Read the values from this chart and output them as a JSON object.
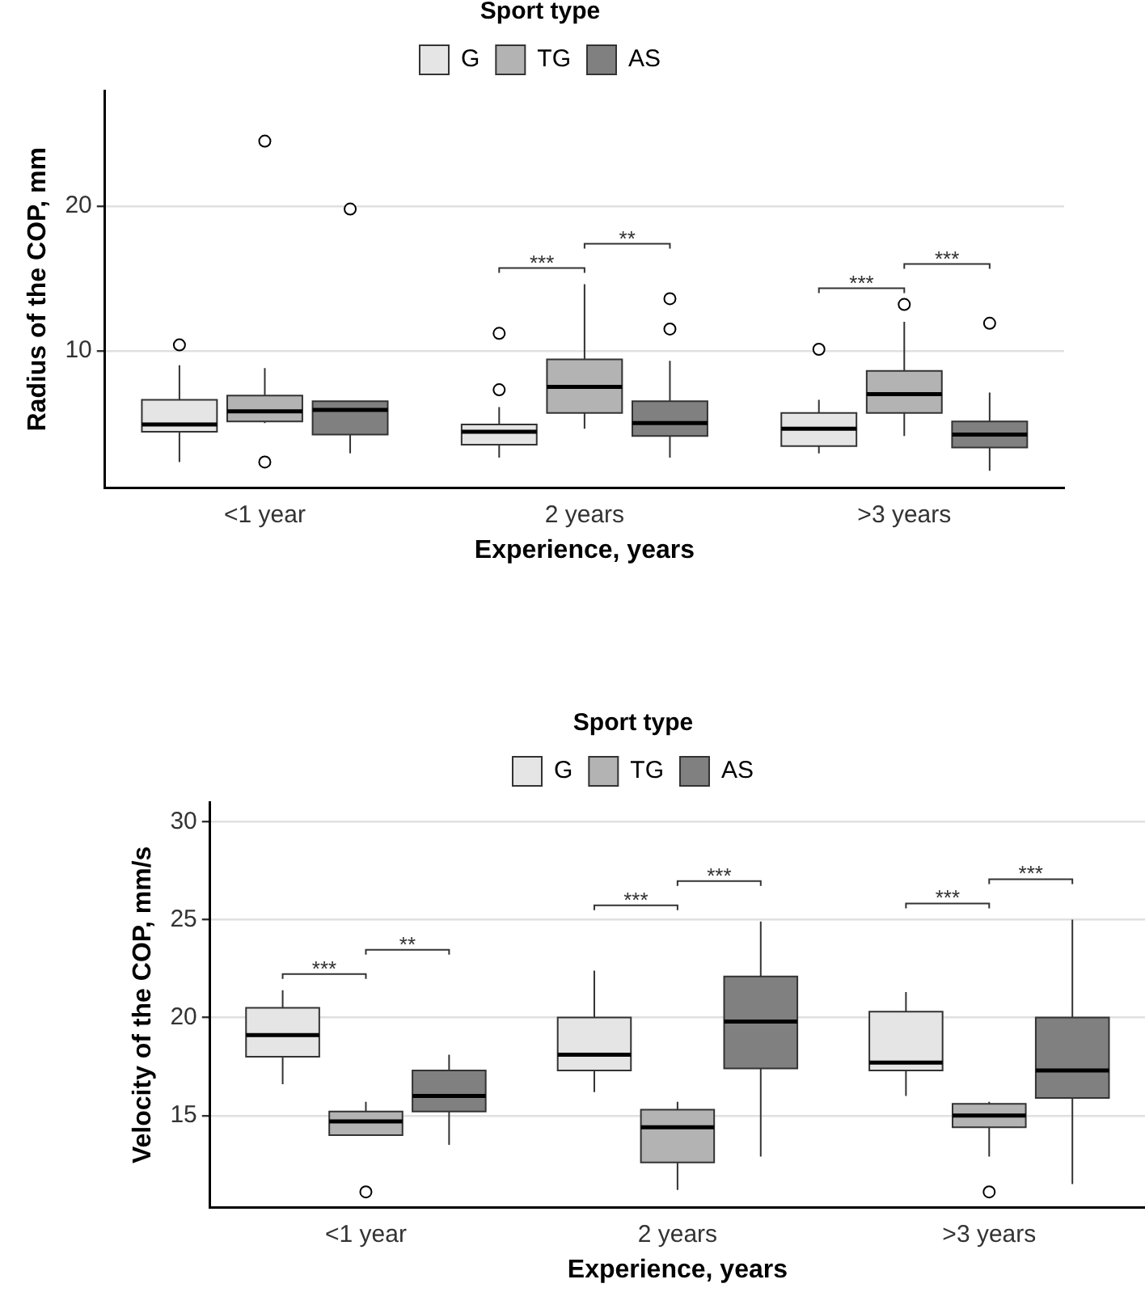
{
  "chart_data": [
    {
      "type": "box",
      "xlabel": "Experience, years",
      "ylabel": "Radius of the COP, mm",
      "legend_title": "Sport type",
      "legend": "top",
      "grid": "y",
      "categories": [
        "<1 year",
        "2 years",
        ">3 years"
      ],
      "ylim": [
        0.5,
        28
      ],
      "yticks": [
        10,
        20
      ],
      "series": [
        {
          "name": "G",
          "color": "#e5e5e5",
          "boxes": [
            {
              "low": 2.3,
              "q1": 4.4,
              "median": 4.9,
              "q3": 6.6,
              "high": 9.0,
              "outliers": [
                10.4
              ]
            },
            {
              "low": 2.6,
              "q1": 3.5,
              "median": 4.4,
              "q3": 4.9,
              "high": 6.1,
              "outliers": [
                7.3,
                11.2
              ]
            },
            {
              "low": 2.9,
              "q1": 3.4,
              "median": 4.6,
              "q3": 5.7,
              "high": 6.6,
              "outliers": [
                10.1
              ]
            }
          ]
        },
        {
          "name": "TG",
          "color": "#b3b3b3",
          "boxes": [
            {
              "low": 5.0,
              "q1": 5.1,
              "median": 5.8,
              "q3": 6.9,
              "high": 8.8,
              "outliers": [
                2.3,
                24.5
              ]
            },
            {
              "low": 4.6,
              "q1": 5.7,
              "median": 7.5,
              "q3": 9.4,
              "high": 14.6
            },
            {
              "low": 4.1,
              "q1": 5.7,
              "median": 7.0,
              "q3": 8.6,
              "high": 12.0,
              "outliers": [
                13.2
              ]
            }
          ]
        },
        {
          "name": "AS",
          "color": "#808080",
          "boxes": [
            {
              "low": 2.9,
              "q1": 4.2,
              "median": 5.9,
              "q3": 6.5,
              "high": 6.5,
              "outliers": [
                19.8
              ]
            },
            {
              "low": 2.6,
              "q1": 4.1,
              "median": 5.0,
              "q3": 6.5,
              "high": 9.3,
              "outliers": [
                11.5,
                13.6
              ]
            },
            {
              "low": 1.7,
              "q1": 3.3,
              "median": 4.2,
              "q3": 5.1,
              "high": 7.1,
              "outliers": [
                11.9
              ]
            }
          ]
        }
      ],
      "annotations": [
        "***",
        "**",
        "***",
        "***"
      ]
    },
    {
      "type": "box",
      "xlabel": "Experience, years",
      "ylabel": "Velocity of the COP, mm/s",
      "legend_title": "Sport type",
      "legend": "top",
      "grid": "y",
      "categories": [
        "<1 year",
        "2 years",
        ">3 years"
      ],
      "ylim": [
        10.3,
        31
      ],
      "yticks": [
        15,
        20,
        25,
        30
      ],
      "series": [
        {
          "name": "G",
          "color": "#e5e5e5",
          "boxes": [
            {
              "low": 16.6,
              "q1": 18.0,
              "median": 19.1,
              "q3": 20.5,
              "high": 21.4
            },
            {
              "low": 16.2,
              "q1": 17.3,
              "median": 18.1,
              "q3": 20.0,
              "high": 22.4
            },
            {
              "low": 16.0,
              "q1": 17.3,
              "median": 17.7,
              "q3": 20.3,
              "high": 21.3
            }
          ]
        },
        {
          "name": "TG",
          "color": "#b3b3b3",
          "boxes": [
            {
              "low": 14.0,
              "q1": 14.0,
              "median": 14.7,
              "q3": 15.2,
              "high": 15.7,
              "outliers": [
                11.1
              ]
            },
            {
              "low": 11.2,
              "q1": 12.6,
              "median": 14.4,
              "q3": 15.3,
              "high": 15.7
            },
            {
              "low": 12.9,
              "q1": 14.4,
              "median": 15.0,
              "q3": 15.6,
              "high": 15.7,
              "outliers": [
                11.1
              ]
            }
          ]
        },
        {
          "name": "AS",
          "color": "#808080",
          "boxes": [
            {
              "low": 13.5,
              "q1": 15.2,
              "median": 16.0,
              "q3": 17.3,
              "high": 18.1
            },
            {
              "low": 12.9,
              "q1": 17.4,
              "median": 19.8,
              "q3": 22.1,
              "high": 24.9
            },
            {
              "low": 11.5,
              "q1": 15.9,
              "median": 17.3,
              "q3": 20.0,
              "high": 25.0
            }
          ]
        }
      ],
      "annotations": [
        "***",
        "**",
        "***",
        "***",
        "***",
        "***"
      ]
    }
  ]
}
